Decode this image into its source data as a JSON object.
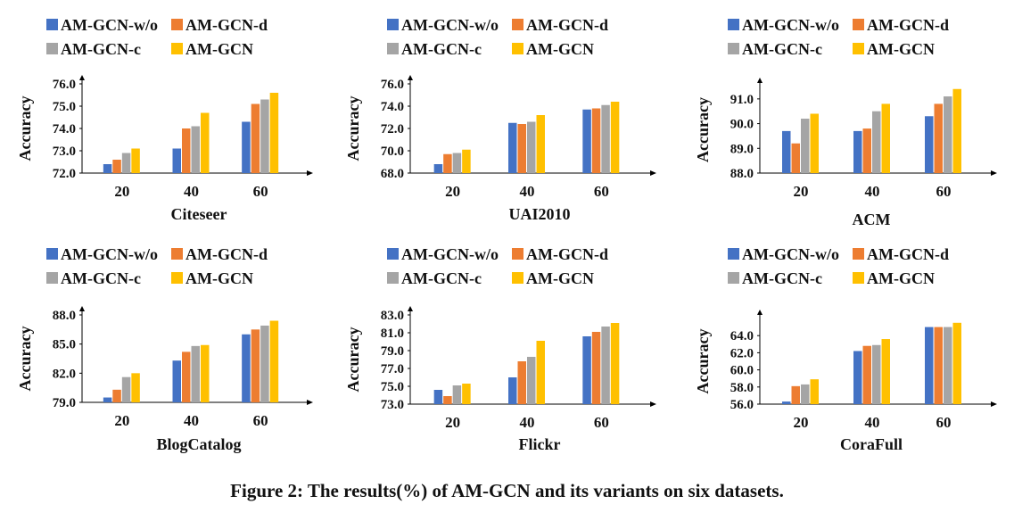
{
  "caption": "Figure 2: The results(%) of AM-GCN and its variants on six datasets.",
  "colors": {
    "AM-GCN-w/o": "#4472C4",
    "AM-GCN-d": "#ED7D31",
    "AM-GCN-c": "#A5A5A5",
    "AM-GCN": "#FFC000"
  },
  "chart_data": [
    {
      "type": "bar",
      "title": "Citeseer",
      "xlabel": "",
      "ylabel": "Accuracy",
      "categories": [
        "20",
        "40",
        "60"
      ],
      "ylim": [
        72.0,
        76.0
      ],
      "yticks": [
        "72.0",
        "73.0",
        "74.0",
        "75.0",
        "76.0"
      ],
      "legend_position": "top",
      "series": [
        {
          "name": "AM-GCN-w/o",
          "values": [
            72.4,
            73.1,
            74.3
          ]
        },
        {
          "name": "AM-GCN-d",
          "values": [
            72.6,
            74.0,
            75.1
          ]
        },
        {
          "name": "AM-GCN-c",
          "values": [
            72.9,
            74.1,
            75.3
          ]
        },
        {
          "name": "AM-GCN",
          "values": [
            73.1,
            74.7,
            75.6
          ]
        }
      ]
    },
    {
      "type": "bar",
      "title": "UAI2010",
      "xlabel": "",
      "ylabel": "Accuracy",
      "categories": [
        "20",
        "40",
        "60"
      ],
      "ylim": [
        68.0,
        76.0
      ],
      "yticks": [
        "68.0",
        "70.0",
        "72.0",
        "74.0",
        "76.0"
      ],
      "legend_position": "top",
      "series": [
        {
          "name": "AM-GCN-w/o",
          "values": [
            68.8,
            72.5,
            73.7
          ]
        },
        {
          "name": "AM-GCN-d",
          "values": [
            69.7,
            72.4,
            73.8
          ]
        },
        {
          "name": "AM-GCN-c",
          "values": [
            69.8,
            72.6,
            74.1
          ]
        },
        {
          "name": "AM-GCN",
          "values": [
            70.1,
            73.2,
            74.4
          ]
        }
      ]
    },
    {
      "type": "bar",
      "title": "ACM",
      "xlabel": "",
      "ylabel": "Accuracy",
      "categories": [
        "20",
        "40",
        "60"
      ],
      "ylim": [
        88.0,
        91.5
      ],
      "yticks": [
        "88.0",
        "89.0",
        "90.0",
        "91.0"
      ],
      "legend_position": "top",
      "series": [
        {
          "name": "AM-GCN-w/o",
          "values": [
            89.7,
            89.7,
            90.3
          ]
        },
        {
          "name": "AM-GCN-d",
          "values": [
            89.2,
            89.8,
            90.8
          ]
        },
        {
          "name": "AM-GCN-c",
          "values": [
            90.2,
            90.5,
            91.1
          ]
        },
        {
          "name": "AM-GCN",
          "values": [
            90.4,
            90.8,
            91.4
          ]
        }
      ]
    },
    {
      "type": "bar",
      "title": "BlogCatalog",
      "xlabel": "",
      "ylabel": "Accuracy",
      "categories": [
        "20",
        "40",
        "60"
      ],
      "ylim": [
        79.0,
        88.0
      ],
      "yticks": [
        "79.0",
        "82.0",
        "85.0",
        "88.0"
      ],
      "legend_position": "top",
      "series": [
        {
          "name": "AM-GCN-w/o",
          "values": [
            79.5,
            83.3,
            86.0
          ]
        },
        {
          "name": "AM-GCN-d",
          "values": [
            80.3,
            84.2,
            86.5
          ]
        },
        {
          "name": "AM-GCN-c",
          "values": [
            81.6,
            84.8,
            86.9
          ]
        },
        {
          "name": "AM-GCN",
          "values": [
            82.0,
            84.9,
            87.4
          ]
        }
      ]
    },
    {
      "type": "bar",
      "title": "Flickr",
      "xlabel": "",
      "ylabel": "Accuracy",
      "categories": [
        "20",
        "40",
        "60"
      ],
      "ylim": [
        73.0,
        83.0
      ],
      "yticks": [
        "73.0",
        "75.0",
        "77.0",
        "79.0",
        "81.0",
        "83.0"
      ],
      "legend_position": "top",
      "series": [
        {
          "name": "AM-GCN-w/o",
          "values": [
            74.6,
            76.0,
            80.6
          ]
        },
        {
          "name": "AM-GCN-d",
          "values": [
            73.9,
            77.8,
            81.1
          ]
        },
        {
          "name": "AM-GCN-c",
          "values": [
            75.1,
            78.3,
            81.7
          ]
        },
        {
          "name": "AM-GCN",
          "values": [
            75.3,
            80.1,
            82.1
          ]
        }
      ]
    },
    {
      "type": "bar",
      "title": "CoraFull",
      "xlabel": "",
      "ylabel": "Accuracy",
      "categories": [
        "20",
        "40",
        "60"
      ],
      "ylim": [
        56.0,
        66.0
      ],
      "yticks": [
        "56.0",
        "58.0",
        "60.0",
        "62.0",
        "64.0"
      ],
      "legend_position": "top",
      "series": [
        {
          "name": "AM-GCN-w/o",
          "values": [
            56.3,
            62.2,
            65.0
          ]
        },
        {
          "name": "AM-GCN-d",
          "values": [
            58.1,
            62.8,
            65.0
          ]
        },
        {
          "name": "AM-GCN-c",
          "values": [
            58.3,
            62.9,
            65.0
          ]
        },
        {
          "name": "AM-GCN",
          "values": [
            58.9,
            63.6,
            65.5
          ]
        }
      ]
    }
  ]
}
